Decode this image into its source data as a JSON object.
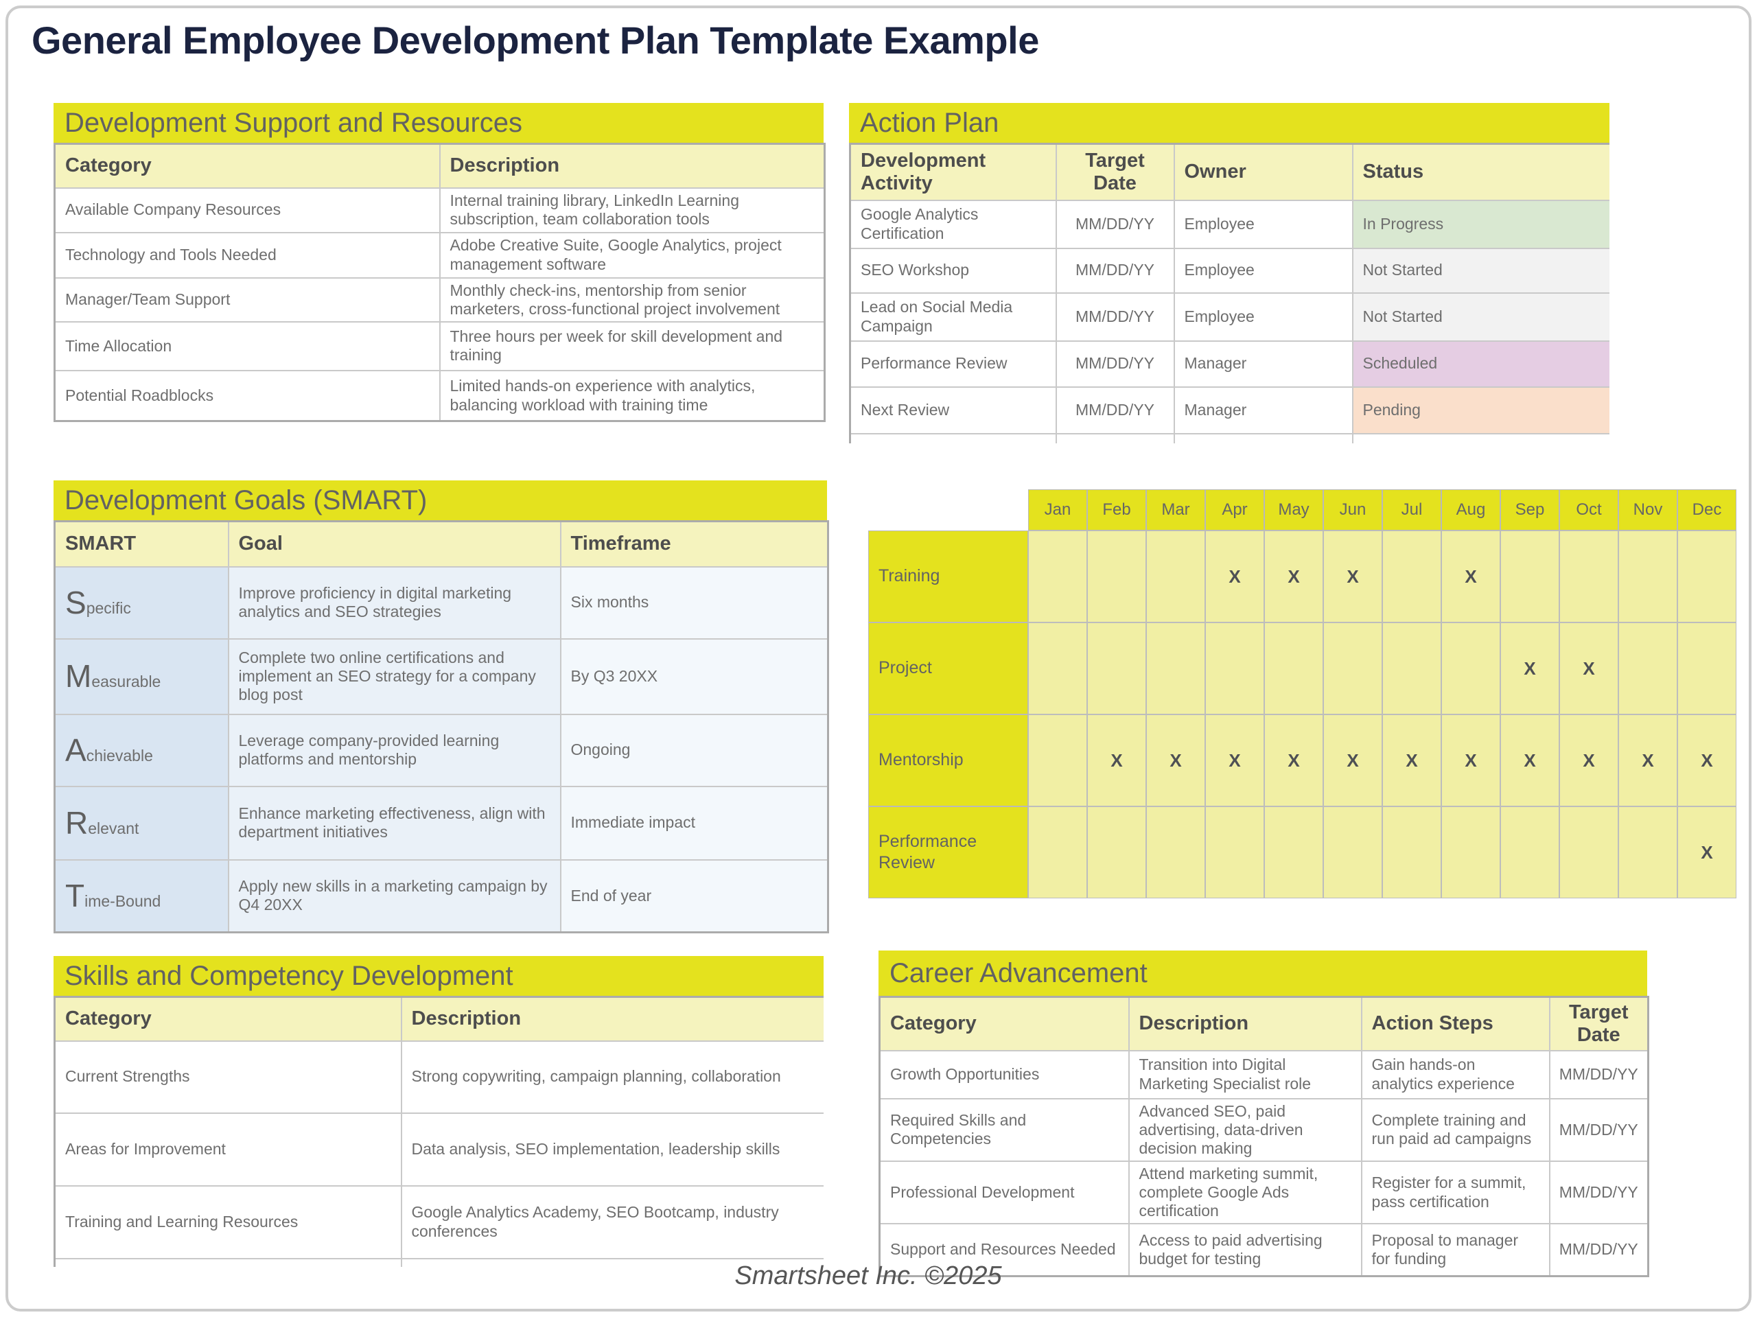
{
  "page": {
    "title": "General Employee Development Plan Template Example",
    "footer": "Smartsheet Inc. ©2025"
  },
  "colors": {
    "header_yellow": "#e4e21e",
    "subheader_yellow": "#f5f3be",
    "grid_cell_yellow": "#f1efa4",
    "status_in_progress": "#d9e8d1",
    "status_not_started": "#f2f2f2",
    "status_scheduled": "#e5cde3",
    "status_pending": "#fadfcb",
    "title_navy": "#1b2340"
  },
  "support_table": {
    "title": "Development Support and Resources",
    "columns": [
      "Category",
      "Description"
    ],
    "rows": [
      {
        "category": "Available Company Resources",
        "description": "Internal training library, LinkedIn Learning subscription, team collaboration tools"
      },
      {
        "category": "Technology and Tools Needed",
        "description": "Adobe Creative Suite, Google Analytics, project management software"
      },
      {
        "category": "Manager/Team Support",
        "description": "Monthly check-ins, mentorship from senior marketers, cross-functional project involvement"
      },
      {
        "category": "Time Allocation",
        "description": "Three hours per week for skill development and training"
      },
      {
        "category": "Potential Roadblocks",
        "description": "Limited hands-on experience with analytics, balancing workload with training time"
      }
    ]
  },
  "action_plan": {
    "title": "Action Plan",
    "columns": [
      "Development Activity",
      "Target Date",
      "Owner",
      "Status"
    ],
    "rows": [
      {
        "activity": "Google Analytics Certification",
        "target_date": "MM/DD/YY",
        "owner": "Employee",
        "status": "In Progress",
        "status_color": "#d9e8d1"
      },
      {
        "activity": "SEO Workshop",
        "target_date": "MM/DD/YY",
        "owner": "Employee",
        "status": "Not Started",
        "status_color": "#f2f2f2"
      },
      {
        "activity": "Lead on Social Media Campaign",
        "target_date": "MM/DD/YY",
        "owner": "Employee",
        "status": "Not Started",
        "status_color": "#f2f2f2"
      },
      {
        "activity": "Performance Review",
        "target_date": "MM/DD/YY",
        "owner": "Manager",
        "status": "Scheduled",
        "status_color": "#e5cde3"
      },
      {
        "activity": "Next Review",
        "target_date": "MM/DD/YY",
        "owner": "Manager",
        "status": "Pending",
        "status_color": "#fadfcb"
      }
    ]
  },
  "smart_goals": {
    "title": "Development Goals (SMART)",
    "columns": [
      "SMART",
      "Goal",
      "Timeframe"
    ],
    "rows": [
      {
        "letter": "S",
        "rest": "pecific",
        "goal": "Improve proficiency in digital marketing analytics and SEO strategies",
        "timeframe": "Six months"
      },
      {
        "letter": "M",
        "rest": "easurable",
        "goal": "Complete two online certifications and implement an SEO strategy for a company blog post",
        "timeframe": "By Q3 20XX"
      },
      {
        "letter": "A",
        "rest": "chievable",
        "goal": "Leverage company-provided learning platforms and mentorship",
        "timeframe": "Ongoing"
      },
      {
        "letter": "R",
        "rest": "elevant",
        "goal": "Enhance marketing effectiveness, align with department initiatives",
        "timeframe": "Immediate impact"
      },
      {
        "letter": "T",
        "rest": "ime-Bound",
        "goal": "Apply new skills in a marketing campaign by Q4 20XX",
        "timeframe": "End of year"
      }
    ]
  },
  "schedule_grid": {
    "mark": "X",
    "months": [
      "Jan",
      "Feb",
      "Mar",
      "Apr",
      "May",
      "Jun",
      "Jul",
      "Aug",
      "Sep",
      "Oct",
      "Nov",
      "Dec"
    ],
    "rows": [
      {
        "label": "Training",
        "marks": [
          "Apr",
          "May",
          "Jun",
          "Aug"
        ]
      },
      {
        "label": "Project",
        "marks": [
          "Sep",
          "Oct"
        ]
      },
      {
        "label": "Mentorship",
        "marks": [
          "Feb",
          "Mar",
          "Apr",
          "May",
          "Jun",
          "Jul",
          "Aug",
          "Sep",
          "Oct",
          "Nov",
          "Dec"
        ]
      },
      {
        "label": "Performance Review",
        "marks": [
          "Dec"
        ]
      }
    ]
  },
  "skills_table": {
    "title": "Skills and Competency Development",
    "columns": [
      "Category",
      "Description"
    ],
    "rows": [
      {
        "category": "Current Strengths",
        "description": "Strong copywriting, campaign planning, collaboration"
      },
      {
        "category": "Areas for Improvement",
        "description": "Data analysis, SEO implementation, leadership skills"
      },
      {
        "category": "Training and Learning Resources",
        "description": "Google Analytics Academy, SEO Bootcamp, industry conferences"
      }
    ]
  },
  "career_table": {
    "title": "Career Advancement",
    "columns": [
      "Category",
      "Description",
      "Action Steps",
      "Target Date"
    ],
    "rows": [
      {
        "category": "Growth Opportunities",
        "description": "Transition into Digital Marketing Specialist role",
        "action_steps": "Gain hands-on analytics experience",
        "target_date": "MM/DD/YY"
      },
      {
        "category": "Required Skills and Competencies",
        "description": "Advanced SEO, paid advertising, data-driven decision making",
        "action_steps": "Complete training and run paid ad campaigns",
        "target_date": "MM/DD/YY"
      },
      {
        "category": "Professional Development",
        "description": "Attend marketing summit, complete Google Ads certification",
        "action_steps": "Register for a summit, pass certification",
        "target_date": "MM/DD/YY"
      },
      {
        "category": "Support and Resources Needed",
        "description": "Access to paid advertising budget for testing",
        "action_steps": "Proposal to manager for funding",
        "target_date": "MM/DD/YY"
      }
    ]
  }
}
